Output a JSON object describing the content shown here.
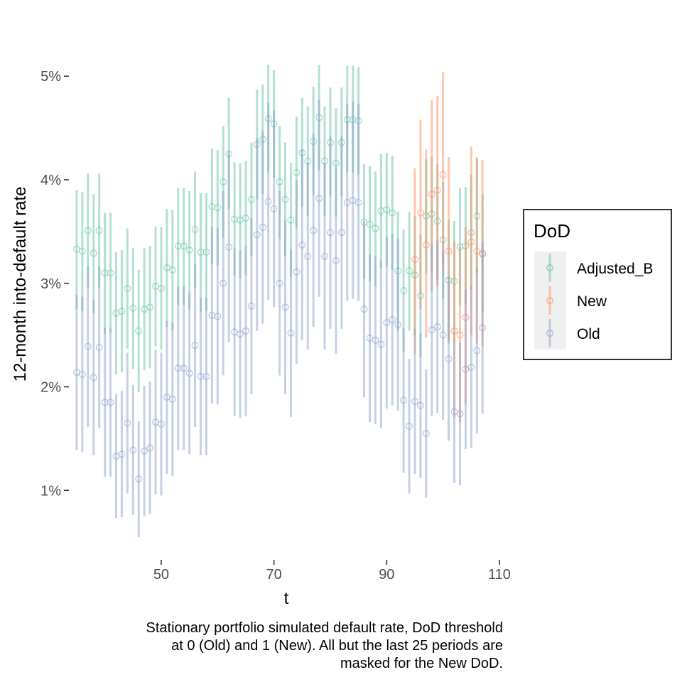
{
  "chart_data": {
    "type": "scatter",
    "xlabel": "t",
    "ylabel": "12-month into-default rate",
    "xlim": [
      34,
      110
    ],
    "ylim": [
      0.0035,
      0.0553
    ],
    "x_ticks": [
      50,
      70,
      90,
      110
    ],
    "y_ticks": [
      0.01,
      0.02,
      0.03,
      0.04,
      0.05
    ],
    "y_tick_labels": [
      "1%",
      "2%",
      "3%",
      "4%",
      "5%"
    ],
    "legend": {
      "title": "DoD",
      "position": "right",
      "items": [
        "Adjusted_B",
        "New",
        "Old"
      ]
    },
    "caption": [
      "Stationary portfolio simulated default rate, DoD threshold",
      "at 0 (Old) and 1 (New). All but the last 25 periods are",
      "masked for the New DoD."
    ],
    "grid": false,
    "colors": {
      "Adjusted_B": "#66c2a5",
      "New": "#fc8d62",
      "Old": "#8da0cb"
    },
    "series": [
      {
        "name": "Adjusted_B",
        "x": [
          35,
          36,
          37,
          38,
          39,
          40,
          41,
          42,
          43,
          44,
          45,
          46,
          47,
          48,
          49,
          50,
          51,
          52,
          53,
          54,
          55,
          56,
          57,
          58,
          59,
          60,
          61,
          62,
          63,
          64,
          65,
          66,
          67,
          68,
          69,
          70,
          71,
          72,
          73,
          74,
          75,
          76,
          77,
          78,
          79,
          80,
          81,
          82,
          83,
          84,
          85,
          86,
          87,
          88,
          89,
          90,
          91,
          92,
          93,
          94,
          95,
          96,
          97,
          98,
          99,
          100,
          101,
          102,
          103,
          104,
          105,
          106,
          107
        ],
        "y": [
          0.0333,
          0.0331,
          0.0351,
          0.0329,
          0.0351,
          0.031,
          0.031,
          0.0271,
          0.0273,
          0.0295,
          0.0276,
          0.0254,
          0.0275,
          0.0277,
          0.0297,
          0.0295,
          0.0315,
          0.0313,
          0.0336,
          0.0336,
          0.0332,
          0.0352,
          0.033,
          0.033,
          0.0374,
          0.0373,
          0.0398,
          0.0425,
          0.0362,
          0.0361,
          0.0363,
          0.0381,
          0.0434,
          0.0439,
          0.0459,
          0.0454,
          0.0398,
          0.0381,
          0.0361,
          0.0407,
          0.0426,
          0.0418,
          0.0437,
          0.046,
          0.0418,
          0.0436,
          0.0416,
          0.0436,
          0.0458,
          0.0458,
          0.0457,
          0.0359,
          0.0357,
          0.0353,
          0.037,
          0.0371,
          0.0368,
          0.0312,
          0.0293,
          0.0312,
          0.0308,
          0.0288,
          0.0365,
          0.0367,
          0.036,
          0.0342,
          0.0303,
          0.0302,
          0.0335,
          0.0336,
          0.0349,
          0.0365,
          0.0329
        ],
        "lower": [
          0.0275,
          0.0273,
          0.0296,
          0.0271,
          0.0296,
          0.0251,
          0.0252,
          0.0212,
          0.0214,
          0.0237,
          0.0217,
          0.0195,
          0.0216,
          0.0218,
          0.0239,
          0.0236,
          0.0258,
          0.0255,
          0.0279,
          0.0279,
          0.0275,
          0.0295,
          0.0272,
          0.0273,
          0.0318,
          0.0317,
          0.0344,
          0.0372,
          0.0307,
          0.0305,
          0.0308,
          0.0326,
          0.0381,
          0.0386,
          0.0407,
          0.0402,
          0.0343,
          0.0326,
          0.0306,
          0.0353,
          0.0374,
          0.0365,
          0.0385,
          0.0409,
          0.0365,
          0.0384,
          0.0364,
          0.0384,
          0.0407,
          0.0407,
          0.0405,
          0.0304,
          0.0302,
          0.0297,
          0.0315,
          0.0316,
          0.0313,
          0.0254,
          0.0234,
          0.0254,
          0.025,
          0.0229,
          0.0309,
          0.0311,
          0.0304,
          0.0285,
          0.0245,
          0.0244,
          0.0279,
          0.028,
          0.0294,
          0.031,
          0.0272
        ],
        "upper": [
          0.039,
          0.0388,
          0.0406,
          0.0386,
          0.0406,
          0.0368,
          0.0368,
          0.033,
          0.0332,
          0.0353,
          0.0334,
          0.0313,
          0.0334,
          0.0336,
          0.0355,
          0.0354,
          0.0372,
          0.0371,
          0.0392,
          0.0392,
          0.0389,
          0.0408,
          0.0387,
          0.0387,
          0.043,
          0.0429,
          0.0452,
          0.0479,
          0.0417,
          0.0416,
          0.0418,
          0.0436,
          0.0487,
          0.0492,
          0.0511,
          0.0506,
          0.0452,
          0.0436,
          0.0416,
          0.0461,
          0.0479,
          0.0471,
          0.049,
          0.0511,
          0.0471,
          0.0489,
          0.0469,
          0.0489,
          0.051,
          0.051,
          0.0509,
          0.0415,
          0.0413,
          0.0408,
          0.0425,
          0.0426,
          0.0423,
          0.0369,
          0.0352,
          0.0369,
          0.0365,
          0.0347,
          0.042,
          0.0422,
          0.0415,
          0.0398,
          0.0361,
          0.036,
          0.0392,
          0.0393,
          0.0405,
          0.042,
          0.0386
        ]
      },
      {
        "name": "New",
        "x": [
          95,
          96,
          97,
          98,
          99,
          100,
          101,
          102,
          103,
          104,
          105,
          106,
          107
        ],
        "y": [
          0.0323,
          0.0368,
          0.0337,
          0.0386,
          0.039,
          0.0405,
          0.0331,
          0.0254,
          0.025,
          0.0267,
          0.034,
          0.0331,
          0.0328
        ],
        "lower": [
          0.0232,
          0.0275,
          0.0247,
          0.0292,
          0.0297,
          0.0312,
          0.0242,
          0.017,
          0.0166,
          0.0183,
          0.025,
          0.0242,
          0.0239
        ],
        "upper": [
          0.0411,
          0.0458,
          0.0429,
          0.0477,
          0.0481,
          0.0504,
          0.0422,
          0.034,
          0.0335,
          0.0354,
          0.0432,
          0.0422,
          0.0419
        ]
      },
      {
        "name": "Old",
        "x": [
          35,
          36,
          37,
          38,
          39,
          40,
          41,
          42,
          43,
          44,
          45,
          46,
          47,
          48,
          49,
          50,
          51,
          52,
          53,
          54,
          55,
          56,
          57,
          58,
          59,
          60,
          61,
          62,
          63,
          64,
          65,
          66,
          67,
          68,
          69,
          70,
          71,
          72,
          73,
          74,
          75,
          76,
          77,
          78,
          79,
          80,
          81,
          82,
          83,
          84,
          85,
          86,
          87,
          88,
          89,
          90,
          91,
          92,
          93,
          94,
          95,
          96,
          97,
          98,
          99,
          100,
          101,
          102,
          103,
          104,
          105,
          106,
          107
        ],
        "y": [
          0.0214,
          0.0212,
          0.0239,
          0.0209,
          0.0238,
          0.0185,
          0.0185,
          0.0133,
          0.0135,
          0.0165,
          0.0139,
          0.0111,
          0.0138,
          0.0141,
          0.0166,
          0.0164,
          0.019,
          0.0188,
          0.0218,
          0.0218,
          0.0213,
          0.024,
          0.021,
          0.021,
          0.0269,
          0.0268,
          0.03,
          0.0335,
          0.0253,
          0.0251,
          0.0254,
          0.0278,
          0.0347,
          0.0354,
          0.0379,
          0.0372,
          0.03,
          0.0277,
          0.0252,
          0.0311,
          0.0337,
          0.0326,
          0.0351,
          0.0382,
          0.0326,
          0.0349,
          0.0322,
          0.0349,
          0.0378,
          0.038,
          0.0378,
          0.0275,
          0.0247,
          0.0245,
          0.0241,
          0.0262,
          0.0265,
          0.026,
          0.0187,
          0.0162,
          0.0186,
          0.0182,
          0.0155,
          0.0255,
          0.0258,
          0.025,
          0.0227,
          0.0176,
          0.0174,
          0.0217,
          0.0219,
          0.0235,
          0.0257
        ],
        "lower": [
          0.0139,
          0.0137,
          0.0161,
          0.0134,
          0.016,
          0.0113,
          0.0113,
          0.0073,
          0.0074,
          0.0097,
          0.0076,
          0.0055,
          0.0075,
          0.0077,
          0.0096,
          0.0095,
          0.0116,
          0.0114,
          0.0139,
          0.0139,
          0.0135,
          0.0161,
          0.0134,
          0.0134,
          0.0184,
          0.0183,
          0.0211,
          0.0243,
          0.0172,
          0.017,
          0.0172,
          0.0193,
          0.0254,
          0.0261,
          0.0284,
          0.0277,
          0.0211,
          0.0193,
          0.0171,
          0.0222,
          0.0245,
          0.0236,
          0.0258,
          0.0287,
          0.0236,
          0.0256,
          0.0232,
          0.0256,
          0.0283,
          0.0285,
          0.0283,
          0.019,
          0.0166,
          0.0164,
          0.016,
          0.0179,
          0.0182,
          0.0177,
          0.0117,
          0.0097,
          0.0116,
          0.0112,
          0.0093,
          0.0172,
          0.0175,
          0.0168,
          0.0148,
          0.0107,
          0.0105,
          0.014,
          0.0141,
          0.0155,
          0.0174
        ],
        "upper": [
          0.0289,
          0.0287,
          0.0317,
          0.0284,
          0.0316,
          0.0257,
          0.0257,
          0.0193,
          0.0196,
          0.0233,
          0.0202,
          0.0167,
          0.0201,
          0.0205,
          0.0236,
          0.0233,
          0.0264,
          0.0262,
          0.0297,
          0.0297,
          0.0291,
          0.0319,
          0.0286,
          0.0286,
          0.0354,
          0.0353,
          0.0389,
          0.0427,
          0.0334,
          0.0332,
          0.0336,
          0.0363,
          0.044,
          0.0447,
          0.0474,
          0.0467,
          0.0389,
          0.0361,
          0.0333,
          0.04,
          0.0429,
          0.0416,
          0.0444,
          0.0477,
          0.0416,
          0.0442,
          0.0412,
          0.0442,
          0.0473,
          0.0475,
          0.0473,
          0.036,
          0.0328,
          0.0326,
          0.0322,
          0.0345,
          0.0348,
          0.0343,
          0.0257,
          0.0227,
          0.0256,
          0.0252,
          0.0217,
          0.0338,
          0.0341,
          0.0332,
          0.0306,
          0.0245,
          0.0243,
          0.0294,
          0.0297,
          0.0315,
          0.034
        ]
      }
    ]
  }
}
